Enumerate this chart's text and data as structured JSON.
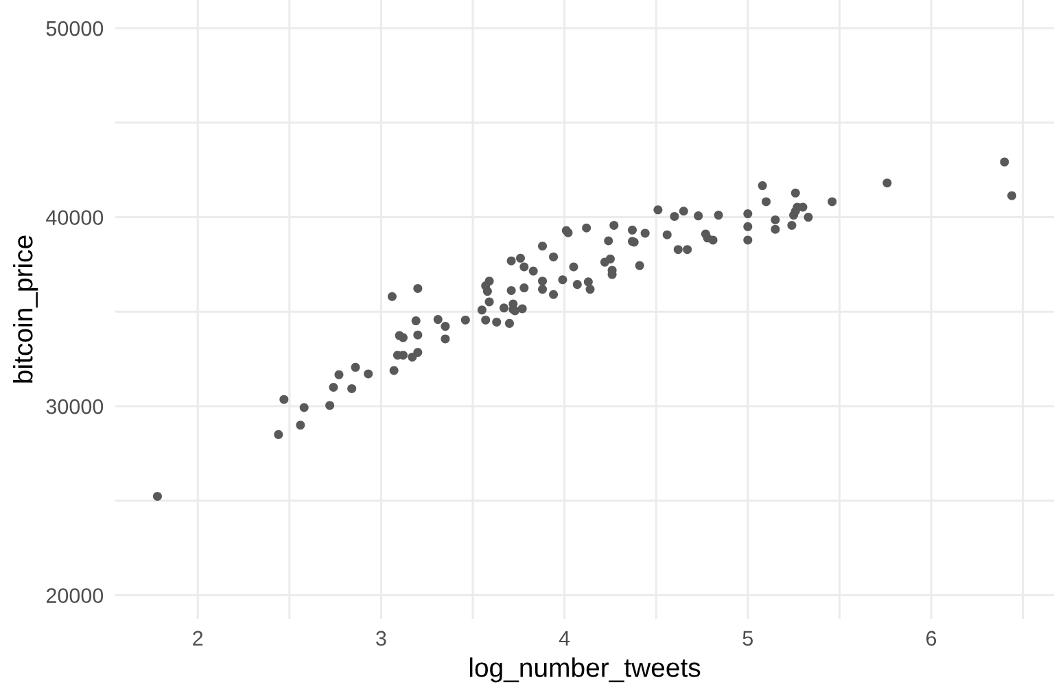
{
  "chart_data": {
    "type": "scatter",
    "xlabel": "log_number_tweets",
    "ylabel": "bitcoin_price",
    "xlim": [
      1.55,
      6.67
    ],
    "ylim": [
      18750,
      51490
    ],
    "xticks": [
      2,
      {
        "value": 2.5,
        "label": null
      },
      3,
      {
        "value": 3.5,
        "label": null
      },
      4,
      {
        "value": 4.5,
        "label": null
      },
      5,
      {
        "value": 5.5,
        "label": null
      },
      6,
      {
        "value": 6.5,
        "label": null
      }
    ],
    "yticks": [
      20000,
      {
        "value": 25000,
        "label": null
      },
      30000,
      {
        "value": 35000,
        "label": null
      },
      40000,
      {
        "value": 45000,
        "label": null
      },
      50000
    ],
    "grid": true,
    "marker": "circle",
    "series": [
      {
        "color": "#595959",
        "x": [
          1.78,
          2.44,
          2.47,
          2.56,
          2.58,
          2.72,
          2.74,
          2.77,
          2.84,
          2.86,
          2.93,
          3.06,
          3.07,
          3.09,
          3.1,
          3.12,
          3.12,
          3.17,
          3.19,
          3.2,
          3.2,
          3.2,
          3.31,
          3.35,
          3.35,
          3.46,
          3.55,
          3.57,
          3.57,
          3.58,
          3.59,
          3.59,
          3.63,
          3.67,
          3.7,
          3.71,
          3.71,
          3.72,
          3.72,
          3.73,
          3.76,
          3.78,
          3.78,
          3.77,
          3.83,
          3.88,
          3.88,
          3.88,
          3.94,
          3.94,
          3.99,
          4.01,
          4.02,
          4.05,
          4.07,
          4.12,
          4.13,
          4.14,
          4.22,
          4.24,
          4.25,
          4.26,
          4.26,
          4.27,
          4.37,
          4.37,
          4.38,
          4.41,
          4.44,
          4.51,
          4.56,
          4.6,
          4.62,
          4.65,
          4.67,
          4.73,
          4.77,
          4.78,
          4.81,
          4.84,
          5.0,
          5.0,
          5.0,
          5.08,
          5.1,
          5.15,
          5.15,
          5.24,
          5.25,
          5.26,
          5.27,
          5.26,
          5.3,
          5.33,
          5.46,
          5.76,
          6.4,
          6.44
        ],
        "values": [
          25230,
          28500,
          30360,
          29000,
          29930,
          30040,
          31000,
          31670,
          30930,
          32060,
          31710,
          35800,
          31890,
          32700,
          33740,
          33630,
          32700,
          32600,
          34520,
          36230,
          33770,
          32850,
          34590,
          34230,
          33560,
          34560,
          35090,
          34560,
          36370,
          36080,
          36620,
          35520,
          34450,
          35200,
          34380,
          37690,
          36120,
          35120,
          35410,
          35050,
          37830,
          36260,
          37370,
          35160,
          37150,
          38470,
          36620,
          36190,
          37900,
          35910,
          36690,
          39290,
          39180,
          37370,
          36440,
          39430,
          36580,
          36190,
          37620,
          38750,
          37790,
          37190,
          36970,
          39570,
          39320,
          38720,
          38680,
          37440,
          39150,
          40390,
          39070,
          40040,
          38290,
          40320,
          38290,
          40070,
          39110,
          38900,
          38790,
          40110,
          40180,
          39500,
          38790,
          41670,
          40820,
          39860,
          39360,
          39570,
          40110,
          41280,
          40530,
          40320,
          40530,
          40000,
          40820,
          41810,
          42920,
          41140
        ]
      }
    ]
  }
}
